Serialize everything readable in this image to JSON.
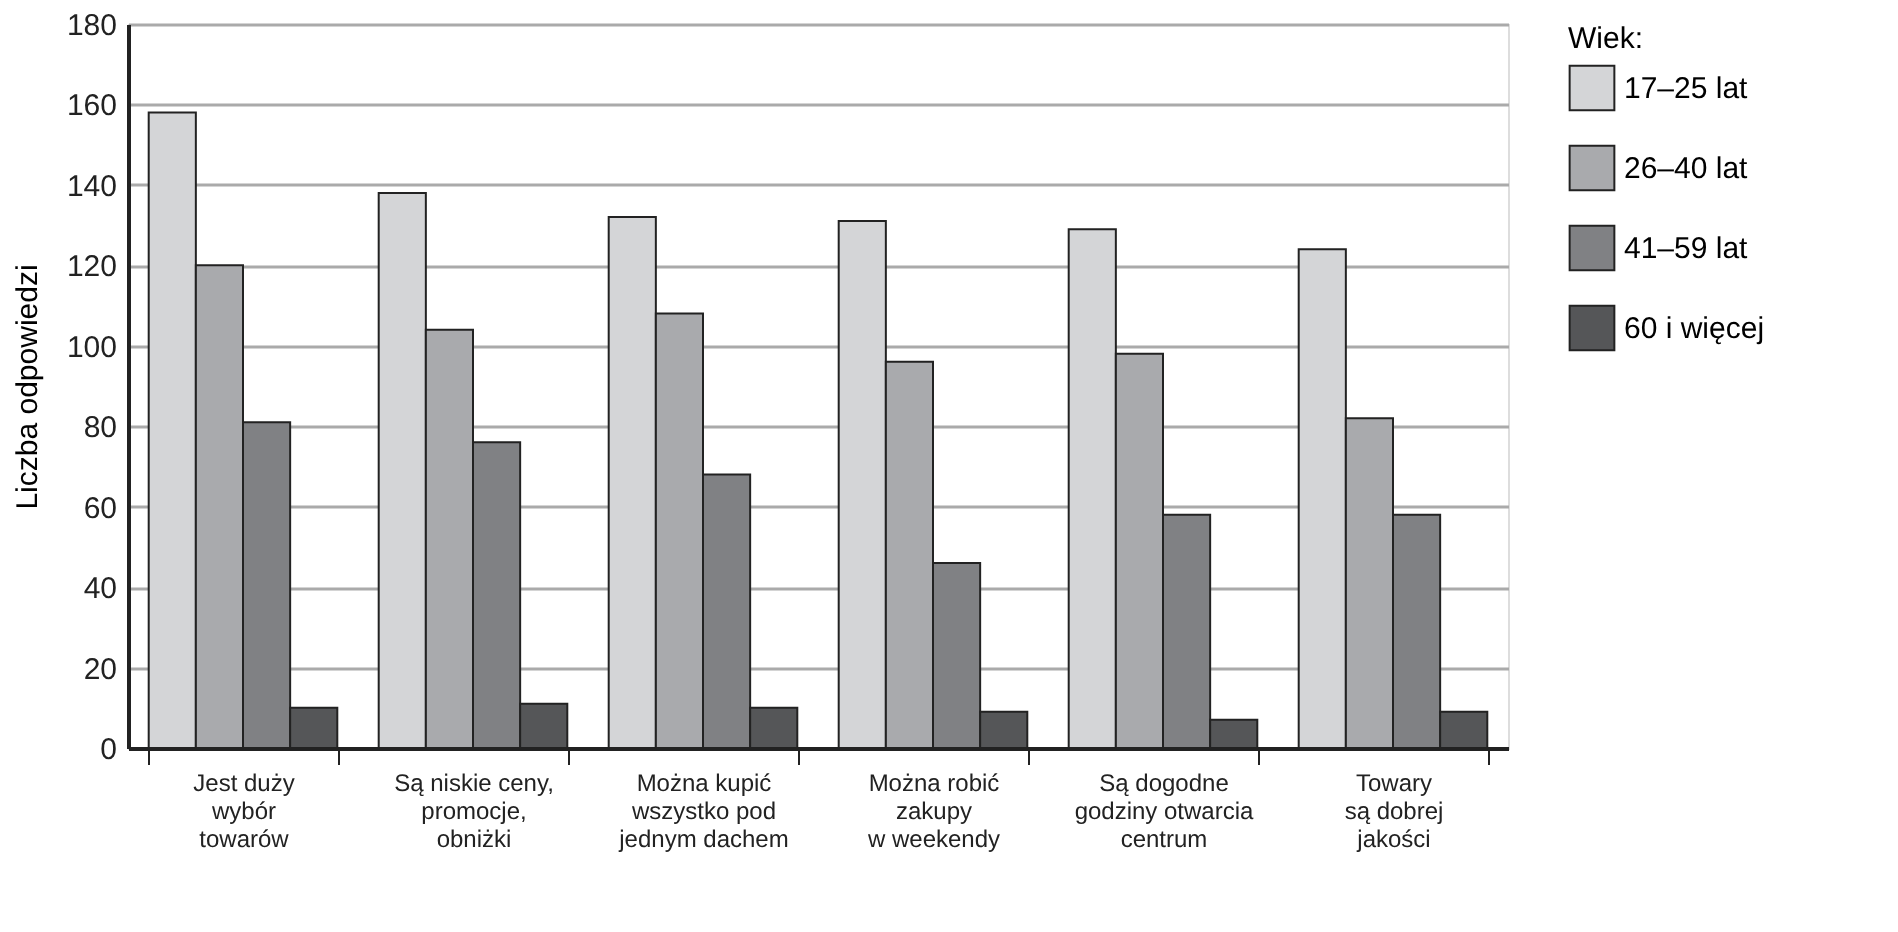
{
  "chart_data": {
    "type": "bar",
    "ylabel": "Liczba odpowiedzi",
    "legend_title": "Wiek:",
    "categories": [
      "Jest duży\nwybór\ntowarów",
      "Są niskie ceny,\npromocje,\nobniżki",
      "Można kupić\nwszystko pod\njednym dachem",
      "Można robić\nzakupy\nw weekendy",
      "Są dogodne\ngodziny otwarcia\ncentrum",
      "Towary\nsą dobrej\njakości"
    ],
    "series": [
      {
        "name": "17–25 lat",
        "color": "#d4d5d7",
        "values": [
          158,
          138,
          132,
          131,
          129,
          124
        ]
      },
      {
        "name": "26–40 lat",
        "color": "#a9aaad",
        "values": [
          120,
          104,
          108,
          96,
          98,
          82
        ]
      },
      {
        "name": "41–59 lat",
        "color": "#808184",
        "values": [
          81,
          76,
          68,
          46,
          58,
          58
        ]
      },
      {
        "name": "60 i więcej",
        "color": "#555658",
        "values": [
          10,
          11,
          10,
          9,
          7,
          9
        ]
      }
    ],
    "ylim": [
      0,
      180
    ],
    "yticks": [
      0,
      20,
      40,
      60,
      80,
      100,
      120,
      140,
      160,
      180
    ],
    "grid": "y",
    "legend": "right"
  }
}
